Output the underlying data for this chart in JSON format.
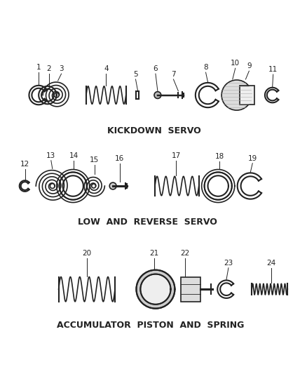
{
  "background_color": "#ffffff",
  "section1_label": "KICKDOWN  SERVO",
  "section2_label": "LOW  AND  REVERSE  SERVO",
  "section3_label": "ACCUMULATOR  PISTON  AND  SPRING",
  "label_fontsize": 9,
  "number_fontsize": 7.5,
  "line_color": "#222222",
  "line_width": 1.2
}
